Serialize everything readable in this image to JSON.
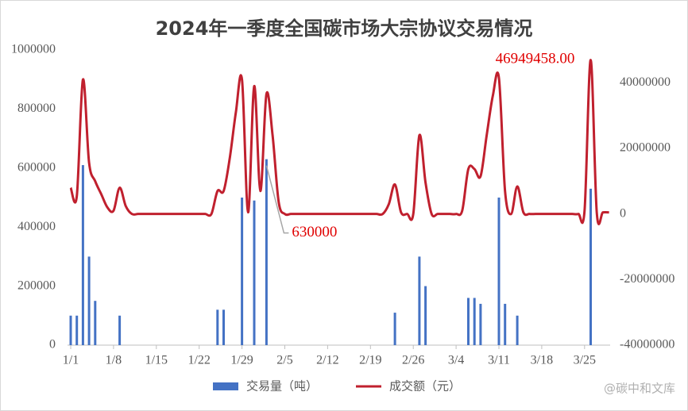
{
  "chart_data": {
    "type": "bar",
    "title": "2024年一季度全国碳市场大宗协议交易情况",
    "categories": [
      "1/1",
      null,
      null,
      null,
      null,
      null,
      null,
      "1/8",
      null,
      null,
      null,
      null,
      null,
      null,
      "1/15",
      null,
      null,
      null,
      null,
      null,
      null,
      "1/22",
      null,
      null,
      null,
      null,
      null,
      null,
      "1/29",
      null,
      null,
      null,
      null,
      null,
      null,
      "2/5",
      null,
      null,
      null,
      null,
      null,
      null,
      "2/12",
      null,
      null,
      null,
      null,
      null,
      null,
      "2/19",
      null,
      null,
      null,
      null,
      null,
      null,
      "2/26",
      null,
      null,
      null,
      null,
      null,
      null,
      "3/4",
      null,
      null,
      null,
      null,
      null,
      null,
      "3/11",
      null,
      null,
      null,
      null,
      null,
      null,
      "3/18",
      null,
      null,
      null,
      null,
      null,
      null,
      "3/25",
      null,
      null,
      null,
      null
    ],
    "series": [
      {
        "name": "交易量（吨）",
        "type": "bar",
        "color": "#4472c4",
        "values": [
          100000,
          100000,
          610000,
          300000,
          150000,
          null,
          null,
          null,
          100000,
          null,
          null,
          null,
          null,
          null,
          null,
          null,
          null,
          null,
          null,
          null,
          null,
          null,
          null,
          null,
          120000,
          120000,
          null,
          null,
          500000,
          null,
          490000,
          null,
          630000,
          null,
          null,
          null,
          null,
          null,
          null,
          null,
          null,
          null,
          null,
          null,
          null,
          null,
          null,
          null,
          null,
          null,
          null,
          null,
          null,
          110000,
          null,
          null,
          null,
          300000,
          200000,
          null,
          null,
          null,
          null,
          null,
          null,
          160000,
          160000,
          140000,
          null,
          null,
          500000,
          140000,
          null,
          100000,
          null,
          null,
          null,
          null,
          null,
          null,
          null,
          null,
          null,
          null,
          null,
          530000,
          null,
          null,
          null
        ]
      },
      {
        "name": "成交额（元）",
        "type": "line",
        "axis": "y2",
        "color": "#c0202e",
        "values": [
          8000000,
          5500000,
          41000000,
          15700000,
          10000000,
          6000000,
          2000000,
          1000000,
          8000000,
          2400000,
          0,
          0,
          0,
          0,
          0,
          0,
          0,
          0,
          0,
          0,
          0,
          0,
          0,
          0,
          7000000,
          7000000,
          17000000,
          31000000,
          41000000,
          500000,
          39000000,
          7000000,
          36600000,
          24000000,
          3600000,
          0,
          0,
          0,
          0,
          0,
          0,
          0,
          0,
          0,
          0,
          0,
          0,
          0,
          0,
          0,
          0,
          0,
          3000000,
          9000000,
          500000,
          0,
          0,
          24000000,
          9600000,
          0,
          0,
          0,
          0,
          0,
          1000000,
          13700000,
          13700000,
          11500000,
          24000000,
          36000000,
          41500000,
          7000000,
          0,
          8400000,
          500000,
          0,
          0,
          0,
          0,
          0,
          0,
          0,
          0,
          0,
          1000000,
          46949458,
          300000,
          500000,
          500000
        ],
        "value_labels": [
          null,
          null,
          null,
          null,
          null,
          null,
          null,
          null,
          null,
          null,
          null,
          null,
          null,
          null,
          null,
          null,
          null,
          null,
          null,
          null,
          null,
          null,
          null,
          null,
          null,
          null,
          null,
          null,
          null,
          null,
          null,
          null,
          null,
          null,
          null,
          null,
          null,
          null,
          null,
          null,
          null,
          null,
          null,
          null,
          null,
          null,
          null,
          null,
          null,
          null,
          null,
          null,
          null,
          null,
          null,
          null,
          null,
          null,
          null,
          null,
          null,
          null,
          null,
          null,
          null,
          null,
          null,
          null,
          null,
          null,
          null,
          null,
          null,
          null,
          null,
          null,
          null,
          null,
          null,
          null,
          null,
          null,
          null,
          null,
          null,
          "46949458.00",
          null,
          null,
          null
        ]
      }
    ],
    "ylim": [
      0,
      1000000
    ],
    "yticks": [
      0,
      200000,
      400000,
      600000,
      800000,
      1000000
    ],
    "y2lim": [
      -40000000,
      50000000
    ],
    "y2ticks": [
      -40000000,
      -20000000,
      0,
      20000000,
      40000000
    ],
    "annotated_bar": 32,
    "legend": "bottom",
    "watermark": "@碳中和文库"
  }
}
